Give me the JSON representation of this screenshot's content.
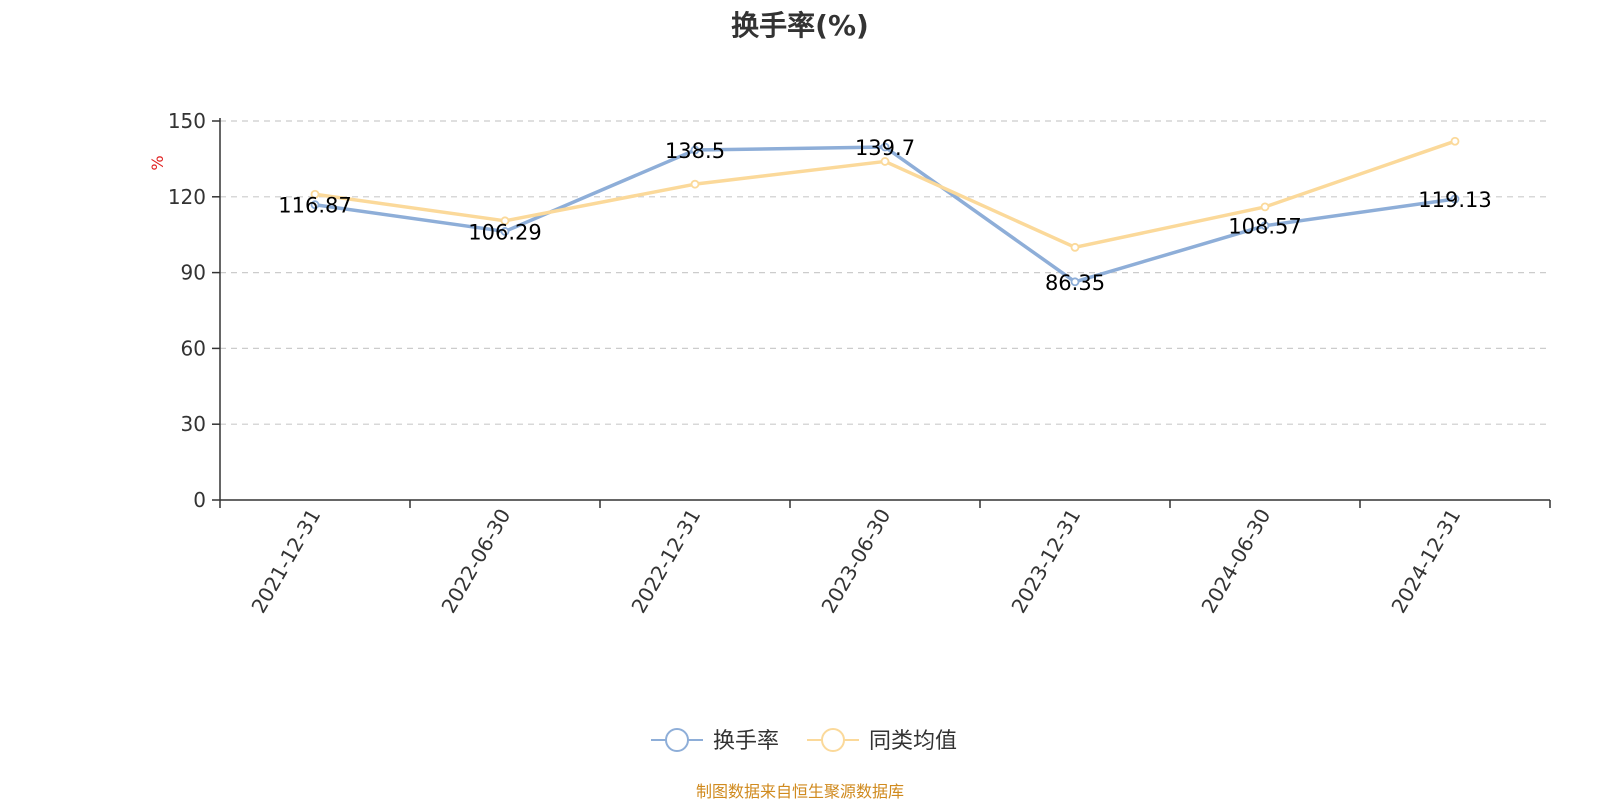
{
  "chart_data": {
    "type": "line",
    "title": "换手率(%)",
    "ylabel": "%",
    "xlabel": "",
    "ylim": [
      0,
      150
    ],
    "yticks": [
      0,
      30,
      60,
      90,
      120,
      150
    ],
    "categories": [
      "2021-12-31",
      "2022-06-30",
      "2022-12-31",
      "2023-06-30",
      "2023-12-31",
      "2024-06-30",
      "2024-12-31"
    ],
    "series": [
      {
        "name": "换手率",
        "color": "#8eaed8",
        "values": [
          116.87,
          106.29,
          138.5,
          139.7,
          86.35,
          108.57,
          119.13
        ],
        "labels": [
          "116.87",
          "106.29",
          "138.5",
          "139.7",
          "86.35",
          "108.57",
          "119.13"
        ],
        "show_labels": true
      },
      {
        "name": "同类均值",
        "color": "#fbd99a",
        "values": [
          121,
          110.5,
          125,
          134,
          100,
          116,
          142
        ],
        "show_labels": false
      }
    ],
    "grid": true,
    "legend_position": "bottom-center"
  },
  "source_note": "制图数据来自恒生聚源数据库",
  "colors": {
    "axis": "#333333",
    "grid": "#cccccc",
    "ylabel": "#e02020",
    "source_note": "#d08a1e"
  }
}
